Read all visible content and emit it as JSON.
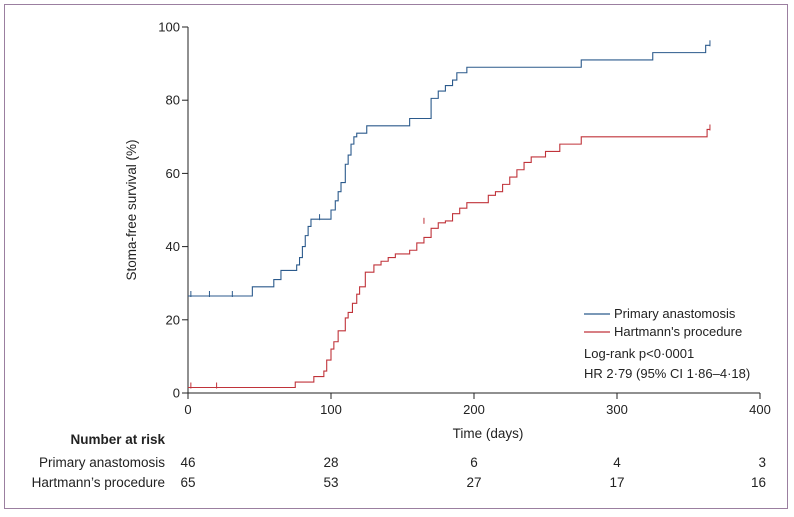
{
  "chart_data": {
    "type": "line",
    "title": "",
    "xlabel": "Time (days)",
    "ylabel": "Stoma-free survival  (%)",
    "xlim": [
      0,
      400
    ],
    "ylim": [
      0,
      100
    ],
    "xticks": [
      "0",
      "100",
      "200",
      "300",
      "400"
    ],
    "yticks": [
      "0",
      "20",
      "40",
      "60",
      "80",
      "100"
    ],
    "grid": false,
    "legend_position": "bottom-right",
    "series": [
      {
        "name": "Primary anastomosis",
        "color": "#2b5a8c",
        "x": [
          0,
          35,
          45,
          55,
          60,
          65,
          72,
          76,
          78,
          80,
          82,
          84,
          86,
          90,
          95,
          100,
          103,
          105,
          107,
          110,
          112,
          114,
          116,
          118,
          120,
          125,
          140,
          155,
          170,
          172,
          175,
          180,
          185,
          188,
          195,
          260,
          275,
          300,
          325,
          350,
          362,
          365
        ],
        "y": [
          26.5,
          26.5,
          29,
          29,
          31,
          33.5,
          33.5,
          35,
          37,
          40,
          43,
          45.5,
          47.5,
          47.5,
          47.5,
          50,
          52.5,
          55,
          57.5,
          62.5,
          65,
          68,
          70,
          71,
          71,
          73,
          73,
          75,
          80.5,
          80.5,
          82.5,
          84,
          85.5,
          87.5,
          89,
          89,
          91,
          91,
          93,
          93,
          95,
          95
        ],
        "censor_x": [
          2,
          15,
          31,
          92,
          365
        ],
        "censor_y": [
          26.5,
          26.5,
          26.5,
          47.5,
          95
        ]
      },
      {
        "name": "Hartmann's procedure",
        "color": "#c0333a",
        "x": [
          0,
          40,
          75,
          88,
          95,
          97,
          100,
          102,
          105,
          110,
          112,
          115,
          118,
          120,
          124,
          126,
          130,
          135,
          140,
          145,
          155,
          160,
          165,
          170,
          175,
          180,
          185,
          190,
          195,
          200,
          205,
          210,
          215,
          220,
          225,
          230,
          235,
          240,
          250,
          255,
          260,
          275,
          300,
          345,
          350,
          363,
          365
        ],
        "y": [
          1.5,
          1.5,
          3,
          4.5,
          6,
          9,
          12,
          14,
          17,
          20.5,
          22,
          24.5,
          27,
          29,
          33,
          33,
          35,
          36,
          37,
          38,
          39,
          41,
          42.5,
          45,
          46.5,
          47,
          49,
          50.5,
          52,
          52,
          52,
          54,
          55,
          57,
          59,
          61,
          63,
          64.5,
          66,
          66,
          68,
          70,
          70,
          70,
          70,
          72,
          72
        ],
        "censor_x": [
          2,
          20,
          165,
          365
        ],
        "censor_y": [
          1.5,
          1.5,
          46.5,
          72
        ]
      }
    ],
    "annotations": [
      "Log-rank p<0·0001",
      "HR 2·79 (95% CI 1·86–4·18)"
    ],
    "risk_table": {
      "title": "Number at risk",
      "timepoints": [
        0,
        100,
        200,
        300,
        400
      ],
      "rows": [
        {
          "label": "Primary anastomosis",
          "values": [
            "46",
            "28",
            "6",
            "4",
            "3"
          ]
        },
        {
          "label": "Hartmann’s procedure",
          "values": [
            "65",
            "53",
            "27",
            "17",
            "16"
          ]
        }
      ]
    }
  }
}
